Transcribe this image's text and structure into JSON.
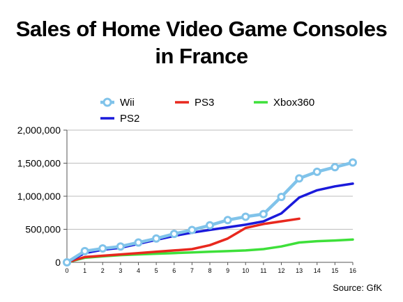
{
  "title_line1": "Sales of Home Video Game Consoles",
  "title_line2": "in France",
  "source": "Source: GfK",
  "chart_data": {
    "type": "line",
    "title": "Sales of Home Video Game Consoles in France",
    "xlabel": "",
    "ylabel": "",
    "x": [
      0,
      1,
      2,
      3,
      4,
      5,
      6,
      7,
      8,
      9,
      10,
      11,
      12,
      13,
      14,
      15,
      16
    ],
    "xlim": [
      0,
      16
    ],
    "ylim": [
      0,
      2000000
    ],
    "y_ticks": [
      0,
      500000,
      1000000,
      1500000,
      2000000
    ],
    "y_tick_labels": [
      "0",
      "500,000",
      "1,000,000",
      "1,500,000",
      "2,000,000"
    ],
    "grid": "horizontal",
    "legend_position": "top",
    "series": [
      {
        "name": "Wii",
        "color": "#80c3ea",
        "marker": "circle",
        "values": [
          0,
          170000,
          210000,
          240000,
          300000,
          360000,
          430000,
          490000,
          560000,
          640000,
          690000,
          730000,
          990000,
          1270000,
          1370000,
          1440000,
          1510000
        ]
      },
      {
        "name": "PS2",
        "color": "#1a1adb",
        "marker": "none",
        "values": [
          0,
          140000,
          190000,
          220000,
          280000,
          340000,
          400000,
          450000,
          490000,
          530000,
          570000,
          620000,
          740000,
          980000,
          1090000,
          1150000,
          1190000
        ]
      },
      {
        "name": "PS3",
        "color": "#e8281e",
        "marker": "none",
        "values": [
          0,
          80000,
          100000,
          120000,
          140000,
          160000,
          180000,
          200000,
          260000,
          360000,
          520000,
          580000,
          620000,
          660000,
          null,
          null,
          null
        ]
      },
      {
        "name": "Xbox360",
        "color": "#3ee03a",
        "marker": "none",
        "values": [
          0,
          70000,
          90000,
          110000,
          120000,
          130000,
          140000,
          150000,
          160000,
          170000,
          180000,
          200000,
          240000,
          300000,
          320000,
          330000,
          345000
        ]
      }
    ],
    "legend_layout": [
      {
        "series": "Wii"
      },
      {
        "series": "PS3"
      },
      {
        "series": "Xbox360"
      },
      {
        "series": "PS2"
      }
    ]
  }
}
